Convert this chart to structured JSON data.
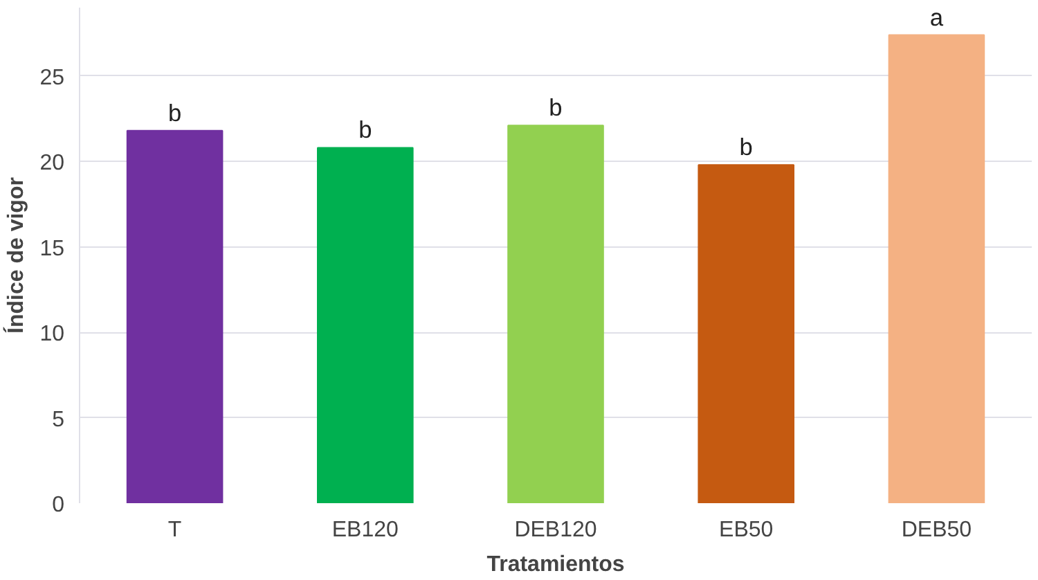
{
  "chart_data": {
    "type": "bar",
    "xlabel": "Tratamientos",
    "ylabel": "Índice de vigor",
    "categories": [
      "T",
      "EB120",
      "DEB120",
      "EB50",
      "DEB50"
    ],
    "values": [
      21.8,
      20.8,
      22.1,
      19.8,
      27.4
    ],
    "colors": [
      "#7030a0",
      "#00b050",
      "#92d050",
      "#c55a11",
      "#f4b183"
    ],
    "value_labels": [
      "b",
      "b",
      "b",
      "b",
      "a"
    ],
    "ylim": [
      0,
      29
    ],
    "yticks": [
      0,
      5,
      10,
      15,
      20,
      25
    ],
    "grid": "y"
  }
}
